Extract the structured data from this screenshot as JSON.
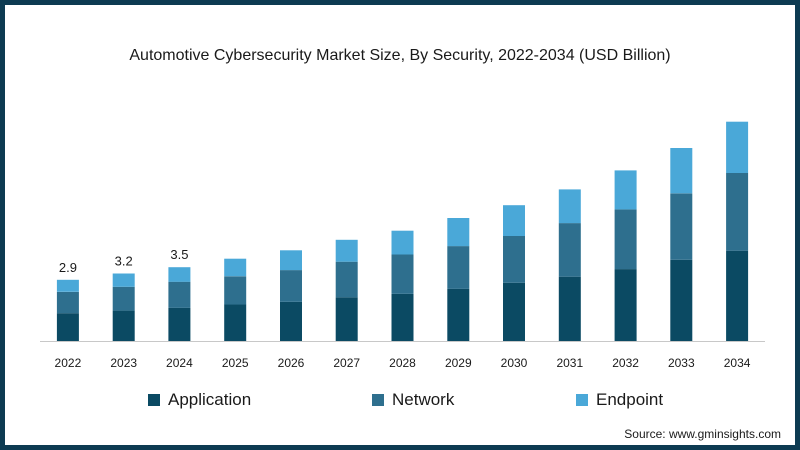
{
  "chart_data": {
    "type": "bar",
    "stacked": true,
    "title": "Automotive Cybersecurity Market Size, By Security, 2022-2034 (USD Billion)",
    "xlabel": "",
    "ylabel": "",
    "categories": [
      "2022",
      "2023",
      "2024",
      "2025",
      "2026",
      "2027",
      "2028",
      "2029",
      "2030",
      "2031",
      "2032",
      "2033",
      "2034"
    ],
    "series": [
      {
        "name": "Application",
        "color": "#0b4a63",
        "values": [
          1.32,
          1.44,
          1.57,
          1.73,
          1.85,
          2.07,
          2.23,
          2.47,
          2.76,
          3.05,
          3.41,
          3.85,
          4.28
        ]
      },
      {
        "name": "Network",
        "color": "#2e6f8e",
        "values": [
          1.01,
          1.13,
          1.24,
          1.34,
          1.51,
          1.69,
          1.87,
          2.03,
          2.22,
          2.54,
          2.83,
          3.15,
          3.69
        ]
      },
      {
        "name": "Endpoint",
        "color": "#4aa8d8",
        "values": [
          0.57,
          0.63,
          0.69,
          0.83,
          0.94,
          1.04,
          1.13,
          1.33,
          1.46,
          1.6,
          1.85,
          2.15,
          2.43
        ]
      }
    ],
    "totals": [
      2.9,
      3.2,
      3.5,
      3.9,
      4.3,
      4.8,
      5.23,
      5.83,
      6.44,
      7.19,
      8.09,
      9.15,
      10.4
    ],
    "data_labels": {
      "2022": "2.9",
      "2023": "3.2",
      "2024": "3.5"
    },
    "ylim": [
      0,
      11
    ],
    "grid": false,
    "legend": "bottom"
  },
  "source": "Source: www.gminsights.com"
}
